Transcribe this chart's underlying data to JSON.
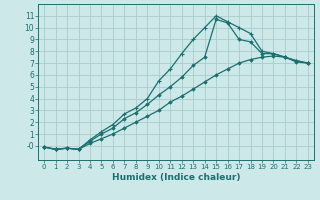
{
  "xlabel": "Humidex (Indice chaleur)",
  "bg_color": "#cce8e8",
  "grid_color": "#aacccc",
  "line_color": "#1a7070",
  "xlim": [
    -0.5,
    23.5
  ],
  "ylim": [
    -1.2,
    12
  ],
  "xticks": [
    0,
    1,
    2,
    3,
    4,
    5,
    6,
    7,
    8,
    9,
    10,
    11,
    12,
    13,
    14,
    15,
    16,
    17,
    18,
    19,
    20,
    21,
    22,
    23
  ],
  "yticks": [
    0,
    1,
    2,
    3,
    4,
    5,
    6,
    7,
    8,
    9,
    10,
    11
  ],
  "ytick_labels": [
    "-0",
    "1",
    "2",
    "3",
    "4",
    "5",
    "6",
    "7",
    "8",
    "9",
    "10",
    "11"
  ],
  "line1_x": [
    0,
    1,
    2,
    3,
    4,
    5,
    6,
    7,
    8,
    9,
    10,
    11,
    12,
    13,
    14,
    15,
    16,
    17,
    18,
    19,
    20,
    21,
    22,
    23
  ],
  "line1_y": [
    -0.1,
    -0.3,
    -0.2,
    -0.3,
    0.5,
    1.2,
    1.8,
    2.7,
    3.2,
    4.0,
    5.5,
    6.5,
    7.8,
    9.0,
    10.0,
    11.0,
    10.5,
    10.0,
    9.5,
    8.0,
    7.8,
    7.5,
    7.2,
    7.0
  ],
  "line2_x": [
    0,
    1,
    2,
    3,
    4,
    5,
    6,
    7,
    8,
    9,
    10,
    11,
    12,
    13,
    14,
    15,
    16,
    17,
    18,
    19,
    20,
    21,
    22,
    23
  ],
  "line2_y": [
    -0.1,
    -0.3,
    -0.2,
    -0.3,
    0.4,
    1.0,
    1.5,
    2.3,
    2.8,
    3.5,
    4.3,
    5.0,
    5.8,
    6.8,
    7.5,
    10.7,
    10.4,
    9.0,
    8.8,
    7.8,
    7.8,
    7.5,
    7.2,
    7.0
  ],
  "line3_x": [
    0,
    1,
    2,
    3,
    4,
    5,
    6,
    7,
    8,
    9,
    10,
    11,
    12,
    13,
    14,
    15,
    16,
    17,
    18,
    19,
    20,
    21,
    22,
    23
  ],
  "line3_y": [
    -0.1,
    -0.3,
    -0.2,
    -0.3,
    0.2,
    0.6,
    1.0,
    1.5,
    2.0,
    2.5,
    3.0,
    3.7,
    4.2,
    4.8,
    5.4,
    6.0,
    6.5,
    7.0,
    7.3,
    7.5,
    7.6,
    7.5,
    7.1,
    7.0
  ]
}
